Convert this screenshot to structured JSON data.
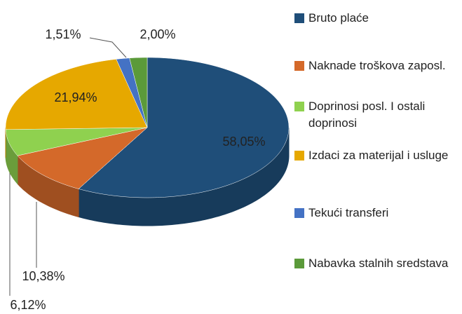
{
  "chart_data": {
    "type": "pie",
    "categories": [
      "Bruto plaće",
      "Naknade troškova zaposl.",
      "Doprinosi posl. I ostali doprinosi",
      "Izdaci za materijal i usluge",
      "Tekući transferi",
      "Nabavka stalnih sredstava"
    ],
    "values": [
      58.05,
      10.38,
      6.12,
      21.94,
      1.51,
      2.0
    ],
    "value_labels": [
      "58,05%",
      "10,38%",
      "6,12%",
      "21,94%",
      "1,51%",
      "2,00%"
    ],
    "colors": [
      "#1f4e79",
      "#d4692a",
      "#8fd14f",
      "#e6a800",
      "#4472c4",
      "#5b9a3a"
    ],
    "legend": "right"
  }
}
